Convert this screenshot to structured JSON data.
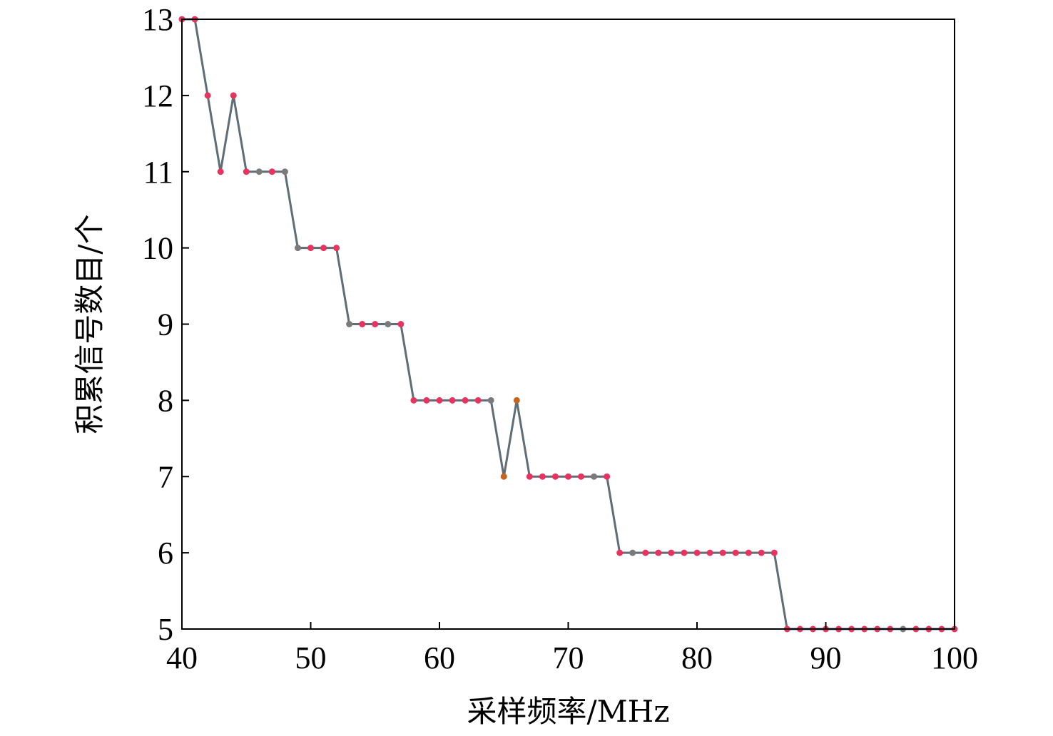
{
  "chart_data": {
    "type": "line",
    "title": "",
    "xlabel": "采样频率/MHz",
    "ylabel": "积累信号数目/个",
    "xlim": [
      40,
      100
    ],
    "ylim": [
      5,
      13
    ],
    "xticks": [
      40,
      50,
      60,
      70,
      80,
      90,
      100
    ],
    "yticks": [
      5,
      6,
      7,
      8,
      9,
      10,
      11,
      12,
      13
    ],
    "grid": false,
    "legend": "none",
    "x": [
      40,
      41,
      42,
      43,
      44,
      45,
      46,
      47,
      48,
      49,
      50,
      51,
      52,
      53,
      54,
      55,
      56,
      57,
      58,
      59,
      60,
      61,
      62,
      63,
      64,
      65,
      66,
      67,
      68,
      69,
      70,
      71,
      72,
      73,
      74,
      75,
      76,
      77,
      78,
      79,
      80,
      81,
      82,
      83,
      84,
      85,
      86,
      87,
      88,
      89,
      90,
      91,
      92,
      93,
      94,
      95,
      96,
      97,
      98,
      99,
      100
    ],
    "series": [
      {
        "color": "#1f77b4",
        "values": [
          13,
          13,
          12,
          11,
          12,
          11,
          11,
          11,
          11,
          10,
          10,
          10,
          10,
          9,
          9,
          9,
          9,
          9,
          8,
          8,
          8,
          8,
          8,
          8,
          8,
          7,
          8,
          7,
          7,
          7,
          7,
          7,
          7,
          7,
          6,
          6,
          6,
          6,
          6,
          6,
          6,
          6,
          6,
          6,
          6,
          6,
          6,
          5,
          5,
          5,
          5,
          5,
          5,
          5,
          5,
          5,
          5,
          5,
          5,
          5,
          5
        ]
      },
      {
        "color": "#6b6b6b",
        "values": [
          13,
          13,
          12,
          11,
          12,
          11,
          11,
          11,
          11,
          10,
          10,
          10,
          10,
          9,
          9,
          9,
          9,
          9,
          8,
          8,
          8,
          8,
          8,
          8,
          8,
          7,
          8,
          7,
          7,
          7,
          7,
          7,
          7,
          7,
          6,
          6,
          6,
          6,
          6,
          6,
          6,
          6,
          6,
          6,
          6,
          6,
          6,
          5,
          5,
          5,
          5,
          5,
          5,
          5,
          5,
          5,
          5,
          5,
          5,
          5,
          5
        ]
      }
    ],
    "marker_colors": {
      "primary": "#e8335f",
      "secondary": "#7a7a7a",
      "accent": "#c8641e"
    }
  }
}
